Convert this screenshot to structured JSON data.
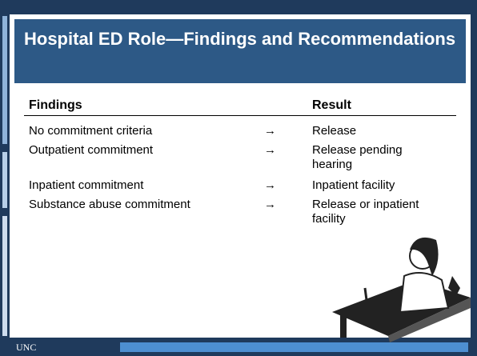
{
  "header": {
    "title": "Hospital ED Role—Findings and Recommendations"
  },
  "table": {
    "headers": [
      "Findings",
      "Result"
    ],
    "rows": [
      [
        "No commitment criteria",
        "→",
        "Release"
      ],
      [
        "Outpatient commitment",
        "→",
        "Release pending hearing"
      ],
      [
        "Inpatient commitment",
        "→",
        "Inpatient facility"
      ],
      [
        "Substance abuse commitment",
        "→",
        "Release or inpatient facility"
      ]
    ]
  },
  "footer": {
    "logo": "UNC"
  }
}
